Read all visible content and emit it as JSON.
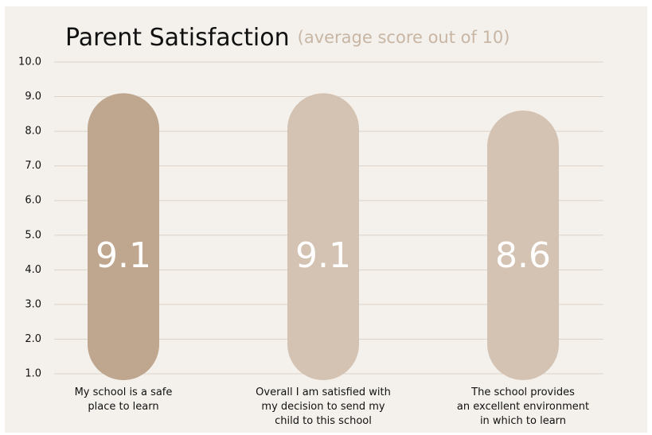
{
  "chart_data": {
    "type": "bar",
    "title": "Parent Satisfaction",
    "subtitle": "(average score out of 10)",
    "categories": [
      "My school is a safe\nplace to learn",
      "Overall I am satisfied with\nmy decision to send my\nchild to this school",
      "The school provides\nan excellent environment\nin which to learn"
    ],
    "values": [
      9.1,
      9.1,
      8.6
    ],
    "colors": [
      "#bfa68e",
      "#d4c3b3",
      "#d4c3b3"
    ],
    "ylim": [
      1,
      10
    ],
    "yticks": [
      {
        "value": 1,
        "label": "1.0"
      },
      {
        "value": 2,
        "label": "2.0"
      },
      {
        "value": 3,
        "label": "3.0"
      },
      {
        "value": 4,
        "label": "4.0"
      },
      {
        "value": 5,
        "label": "5.0"
      },
      {
        "value": 6,
        "label": "6.0"
      },
      {
        "value": 7,
        "label": "7.0"
      },
      {
        "value": 8,
        "label": "8.0"
      },
      {
        "value": 9,
        "label": "9.0"
      },
      {
        "value": 10,
        "label": "10.0"
      }
    ],
    "grid": true
  }
}
